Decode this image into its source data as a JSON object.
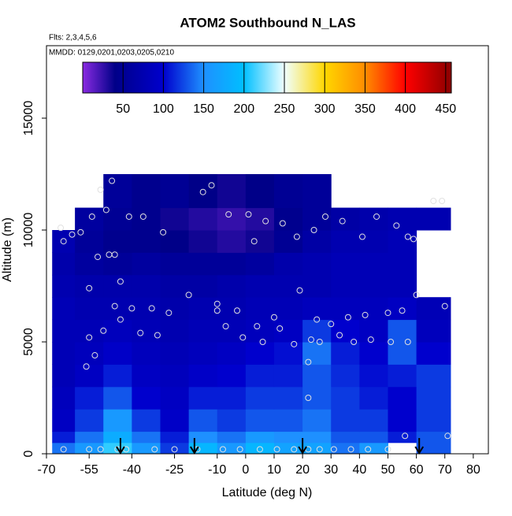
{
  "chart_data": {
    "type": "heatmap",
    "title": "ATOM2 Southbound N_LAS",
    "subtitle": "Flts: 2,3,4,5,6",
    "annotation": "MMDD: 0129,0201,0203,0205,0210",
    "xlabel": "Latitude (deg N)",
    "ylabel": "Altitude (m)",
    "xlim": [
      -70,
      85.3
    ],
    "ylim": [
      0,
      18240
    ],
    "xticks": [
      -70,
      -55,
      -40,
      -25,
      -10,
      0,
      10,
      20,
      30,
      40,
      50,
      60,
      70,
      80
    ],
    "yticks": [
      0,
      5000,
      10000,
      15000
    ],
    "x_bins": [
      -68,
      -60,
      -50,
      -40,
      -30,
      -20,
      -10,
      0,
      10,
      20,
      30,
      40,
      50,
      60,
      72
    ],
    "y_bins": [
      0,
      500,
      1000,
      2000,
      3000,
      4000,
      5000,
      6000,
      7000,
      8000,
      9000,
      10000,
      11000,
      12500
    ],
    "z": [
      [
        140,
        160,
        210,
        160,
        120,
        190,
        160,
        190,
        170,
        170,
        140,
        160,
        null,
        130
      ],
      [
        110,
        140,
        180,
        140,
        110,
        150,
        140,
        160,
        150,
        150,
        130,
        130,
        110,
        130
      ],
      [
        90,
        120,
        160,
        120,
        95,
        130,
        120,
        130,
        130,
        140,
        120,
        120,
        100,
        120
      ],
      [
        85,
        110,
        130,
        100,
        90,
        110,
        110,
        120,
        120,
        130,
        120,
        110,
        100,
        120
      ],
      [
        80,
        90,
        110,
        90,
        85,
        95,
        100,
        110,
        110,
        130,
        115,
        105,
        110,
        120
      ],
      [
        80,
        85,
        95,
        85,
        80,
        85,
        90,
        100,
        105,
        140,
        110,
        100,
        130,
        100
      ],
      [
        80,
        80,
        85,
        80,
        75,
        80,
        80,
        85,
        90,
        120,
        100,
        90,
        130,
        85
      ],
      [
        80,
        75,
        75,
        75,
        70,
        75,
        75,
        80,
        80,
        85,
        85,
        85,
        90,
        80
      ],
      [
        75,
        70,
        70,
        70,
        65,
        65,
        70,
        75,
        75,
        75,
        80,
        80,
        80,
        null
      ],
      [
        70,
        60,
        55,
        60,
        55,
        55,
        55,
        60,
        70,
        75,
        80,
        80,
        80,
        null
      ],
      [
        75,
        55,
        45,
        45,
        40,
        35,
        30,
        35,
        50,
        65,
        75,
        75,
        80,
        null
      ],
      [
        null,
        60,
        50,
        45,
        35,
        30,
        25,
        30,
        45,
        55,
        65,
        70,
        75,
        75
      ],
      [
        null,
        null,
        55,
        45,
        50,
        40,
        35,
        40,
        50,
        55,
        null,
        null,
        null,
        null
      ]
    ],
    "colorbar": {
      "lim": [
        0,
        457
      ],
      "ticks": [
        50,
        100,
        150,
        200,
        250,
        300,
        350,
        400,
        450
      ]
    },
    "colorscale": [
      [
        0,
        "#8a2be2"
      ],
      [
        40,
        "#000088"
      ],
      [
        100,
        "#0000cd"
      ],
      [
        150,
        "#1e90ff"
      ],
      [
        200,
        "#00bfff"
      ],
      [
        250,
        "#f0ffff"
      ],
      [
        300,
        "#ffd700"
      ],
      [
        350,
        "#ff8c00"
      ],
      [
        400,
        "#ff0000"
      ],
      [
        457,
        "#8b0000"
      ]
    ],
    "points": {
      "color": "#e0e0e0",
      "x": [
        -65,
        -64,
        -61,
        -58,
        -54,
        -52,
        -48,
        -46,
        -51,
        -47,
        -49,
        -41,
        -36,
        -44,
        -55,
        -56,
        -53,
        -55,
        -50,
        -46,
        -44,
        -40,
        -37,
        -33,
        -31,
        -29,
        -20,
        -27,
        -15,
        -12,
        -6,
        -10,
        -10,
        -7,
        -3,
        -1,
        4,
        6,
        1,
        3,
        7,
        13,
        10,
        12,
        17,
        19,
        18,
        24,
        28,
        34,
        30,
        25,
        26,
        23,
        22,
        22,
        33,
        36,
        38,
        41,
        42,
        44,
        46,
        50,
        51,
        53,
        55,
        57,
        59,
        60,
        57,
        56,
        66,
        69,
        70,
        71,
        -64,
        -55,
        -51,
        -45,
        -42,
        -32,
        -25,
        -17,
        -8,
        -2,
        5,
        11,
        17,
        22,
        26,
        31,
        37,
        43,
        50
      ],
      "y": [
        10100,
        9500,
        9800,
        9900,
        10600,
        8800,
        8900,
        8900,
        11800,
        12200,
        10900,
        10600,
        10600,
        7700,
        7400,
        3900,
        4400,
        5200,
        5500,
        6600,
        6000,
        6500,
        5400,
        6500,
        5300,
        9900,
        7100,
        6300,
        11700,
        12000,
        10700,
        6700,
        6400,
        5700,
        6400,
        5200,
        5700,
        5000,
        10700,
        9500,
        10400,
        10300,
        6100,
        5600,
        4900,
        7300,
        9700,
        10000,
        10600,
        10400,
        5800,
        6000,
        5000,
        5100,
        4100,
        2500,
        5300,
        6100,
        5000,
        9700,
        6200,
        5100,
        10600,
        6300,
        5000,
        10200,
        6400,
        9700,
        9600,
        7100,
        5000,
        800,
        11300,
        11300,
        6600,
        800,
        200,
        200,
        200,
        200,
        200,
        200,
        200,
        200,
        200,
        200,
        200,
        200,
        200,
        200,
        200,
        200,
        200,
        200,
        200
      ]
    },
    "arrows_x": [
      -44,
      -18,
      20,
      61
    ]
  }
}
